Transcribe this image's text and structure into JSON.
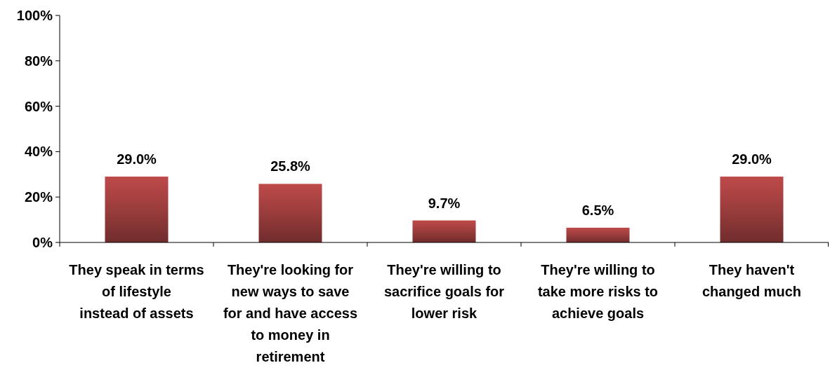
{
  "chart_data": {
    "type": "bar",
    "categories": [
      "They speak in terms of lifestyle instead of assets",
      "They're looking for new ways to save for and have access to money in retirement",
      "They're willing to sacrifice goals for lower risk",
      "They're willing to take more risks to achieve goals",
      "They haven't changed much"
    ],
    "values": [
      29.0,
      25.8,
      9.7,
      6.5,
      29.0
    ],
    "value_labels": [
      "29.0%",
      "25.8%",
      "9.7%",
      "6.5%",
      "29.0%"
    ],
    "color": "#9a3c3c",
    "ylim": [
      0,
      100
    ],
    "yticks": [
      {
        "value": 0,
        "label": "0%"
      },
      {
        "value": 20,
        "label": "20%"
      },
      {
        "value": 40,
        "label": "40%"
      },
      {
        "value": 60,
        "label": "60%"
      },
      {
        "value": 80,
        "label": "80%"
      },
      {
        "value": 100,
        "label": "100%"
      }
    ],
    "grid": false
  }
}
